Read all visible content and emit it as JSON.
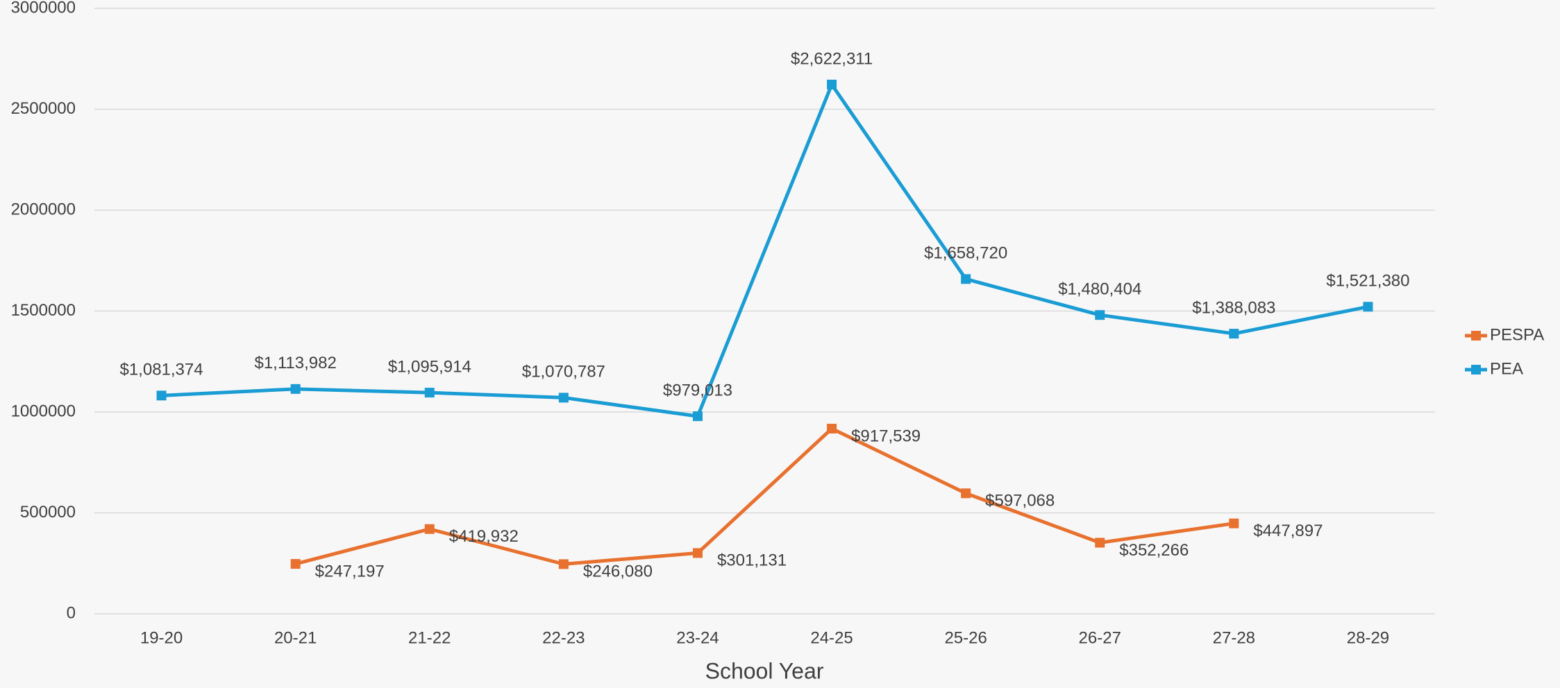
{
  "chart_data": {
    "type": "line",
    "x_label": "School Year",
    "categories": [
      "19-20",
      "20-21",
      "21-22",
      "22-23",
      "23-24",
      "24-25",
      "25-26",
      "26-27",
      "27-28",
      "28-29"
    ],
    "series": [
      {
        "name": "PESPA",
        "color": "#e8712f",
        "values": [
          null,
          247197,
          419932,
          246080,
          301131,
          917539,
          597068,
          352266,
          447897,
          null
        ],
        "value_labels": [
          null,
          "$247,197",
          "$419,932",
          "$246,080",
          "$301,131",
          "$917,539",
          "$597,068",
          "$352,266",
          "$447,897",
          null
        ]
      },
      {
        "name": "PEA",
        "color": "#1a9cd4",
        "values": [
          1081374,
          1113982,
          1095914,
          1070787,
          979013,
          2622311,
          1658720,
          1480404,
          1388083,
          1521380
        ],
        "value_labels": [
          "$1,081,374",
          "$1,113,982",
          "$1,095,914",
          "$1,070,787",
          "$979,013",
          "$2,622,311",
          "$1,658,720",
          "$1,480,404",
          "$1,388,083",
          "$1,521,380"
        ]
      }
    ],
    "ylim": [
      0,
      3000000
    ],
    "yticks": [
      0,
      500000,
      1000000,
      1500000,
      2000000,
      2500000,
      3000000
    ],
    "grid": true,
    "legend": "right"
  }
}
